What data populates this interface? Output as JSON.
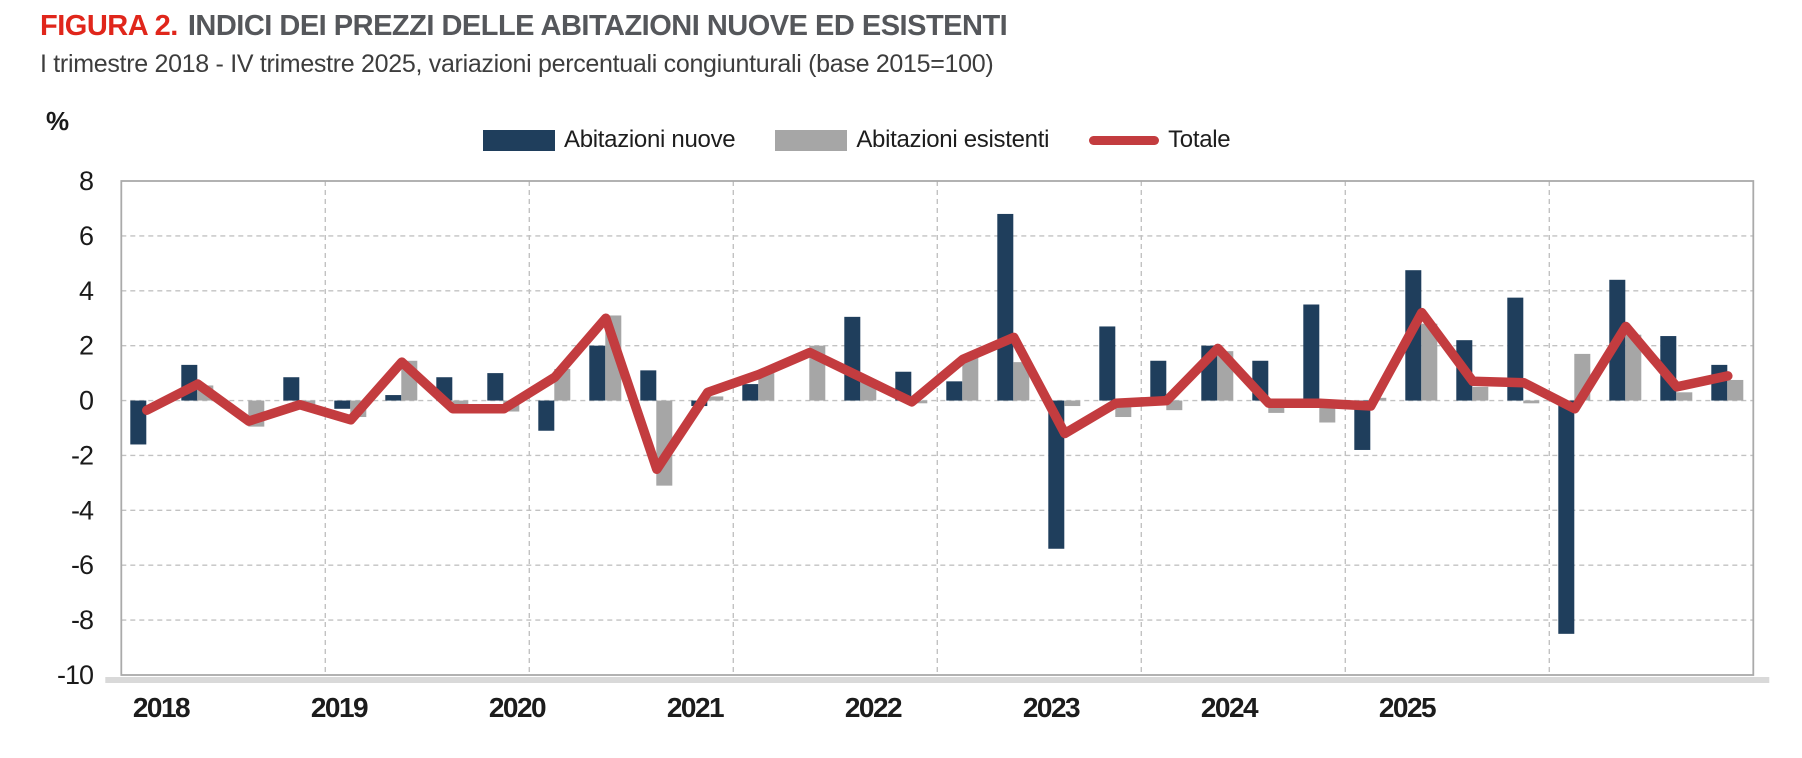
{
  "header": {
    "figura_label": "FIGURA 2.",
    "title": "INDICI DEI PREZZI DELLE ABITAZIONI NUOVE ED ESISTENTI",
    "subtitle": "I trimestre 2018 - IV trimestre 2025, variazioni percentuali congiunturali (base 2015=100)"
  },
  "legend": {
    "items": [
      {
        "label": "Abitazioni nuove",
        "color": "#1f3e5c",
        "type": "bar"
      },
      {
        "label": "Abitazioni esistenti",
        "color": "#a6a6a6",
        "type": "bar"
      },
      {
        "label": "Totale",
        "color": "#c33c3f",
        "type": "line"
      }
    ]
  },
  "chart_data": {
    "type": "bar",
    "title": "FIGURA 2. INDICI DEI PREZZI DELLE ABITAZIONI NUOVE ED ESISTENTI",
    "subtitle": "I trimestre 2018 - IV trimestre 2025, variazioni percentuali congiunturali (base 2015=100)",
    "ylabel": "%",
    "ylim": [
      -10,
      8
    ],
    "ytick_step": 2,
    "ytick_labels": [
      "8",
      "6",
      "4",
      "2",
      "0",
      "-2",
      "-4",
      "-6",
      "-8",
      "-10"
    ],
    "grid": "dashed",
    "legend_position": "top-center",
    "year_labels": [
      "2018",
      "2019",
      "2020",
      "2021",
      "2022",
      "2023",
      "2024",
      "2025"
    ],
    "categories": [
      "2018-T1",
      "2018-T2",
      "2018-T3",
      "2018-T4",
      "2019-T1",
      "2019-T2",
      "2019-T3",
      "2019-T4",
      "2020-T1",
      "2020-T2",
      "2020-T3",
      "2020-T4",
      "2021-T1",
      "2021-T2",
      "2021-T3",
      "2021-T4",
      "2022-T1",
      "2022-T2",
      "2022-T3",
      "2022-T4",
      "2023-T1",
      "2023-T2",
      "2023-T3",
      "2023-T4",
      "2024-T1",
      "2024-T2",
      "2024-T3",
      "2024-T4",
      "2025-T1",
      "2025-T2",
      "2025-T3",
      "2025-T4"
    ],
    "series": [
      {
        "name": "Abitazioni nuove",
        "type": "bar",
        "color": "#1f3e5c",
        "values": [
          -1.6,
          1.3,
          0.0,
          0.85,
          -0.3,
          0.2,
          0.85,
          1.0,
          -1.1,
          2.0,
          1.1,
          -0.2,
          0.6,
          0.0,
          3.05,
          1.05,
          0.7,
          6.8,
          -5.4,
          2.7,
          1.45,
          2.0,
          1.45,
          3.5,
          -1.8,
          4.75,
          2.2,
          3.75,
          -8.5,
          4.4,
          2.35,
          1.3
        ]
      },
      {
        "name": "Abitazioni esistenti",
        "type": "bar",
        "color": "#a6a6a6",
        "values": [
          0.0,
          0.55,
          -0.95,
          -0.25,
          -0.6,
          1.45,
          -0.45,
          -0.4,
          1.15,
          3.1,
          -3.1,
          0.15,
          1.0,
          2.0,
          0.65,
          -0.1,
          1.55,
          1.4,
          -0.2,
          -0.6,
          -0.35,
          1.8,
          -0.45,
          -0.8,
          0.1,
          2.8,
          0.5,
          -0.1,
          1.7,
          2.4,
          0.3,
          0.75
        ]
      },
      {
        "name": "Totale",
        "type": "line",
        "color": "#c33c3f",
        "values": [
          -0.35,
          0.6,
          -0.75,
          -0.15,
          -0.7,
          1.4,
          -0.3,
          -0.3,
          0.85,
          3.0,
          -2.5,
          0.3,
          0.95,
          1.75,
          0.85,
          -0.05,
          1.5,
          2.3,
          -1.2,
          -0.1,
          0.0,
          1.9,
          -0.1,
          -0.1,
          -0.2,
          3.2,
          0.7,
          0.65,
          -0.3,
          2.7,
          0.5,
          0.9
        ]
      }
    ],
    "colors": {
      "grid": "#c2c2c2",
      "plot_border": "#aaaaaa",
      "axis_band": "#d9d9d9",
      "tick_text": "#1a1a1a"
    }
  }
}
